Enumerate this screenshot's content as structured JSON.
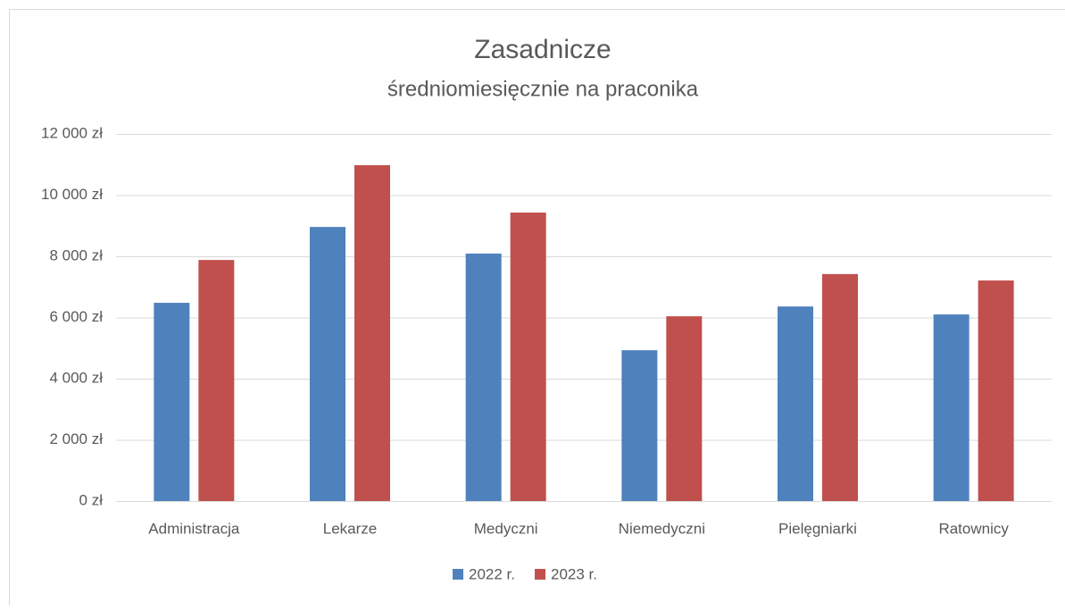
{
  "chart_data": {
    "type": "bar",
    "title": "Zasadnicze",
    "subtitle": "średniomiesięcznie na praconika",
    "categories": [
      "Administracja",
      "Lekarze",
      "Medyczni",
      "Niemedyczni",
      "Pielęgniarki",
      "Ratownicy"
    ],
    "series": [
      {
        "name": "2022 r.",
        "color": "#4f81bd",
        "values": [
          6480,
          8960,
          8090,
          4930,
          6360,
          6100
        ]
      },
      {
        "name": "2023 r.",
        "color": "#c0504d",
        "values": [
          7880,
          10980,
          9430,
          6040,
          7420,
          7210
        ]
      }
    ],
    "ylim": [
      0,
      12000
    ],
    "yticks": [
      {
        "value": 0,
        "label": "0 zł"
      },
      {
        "value": 2000,
        "label": "2 000 zł"
      },
      {
        "value": 4000,
        "label": "4 000 zł"
      },
      {
        "value": 6000,
        "label": "6 000 zł"
      },
      {
        "value": 8000,
        "label": "8 000 zł"
      },
      {
        "value": 10000,
        "label": "10 000 zł"
      },
      {
        "value": 12000,
        "label": "12 000 zł"
      }
    ],
    "grid": true,
    "legend": "bottom"
  }
}
